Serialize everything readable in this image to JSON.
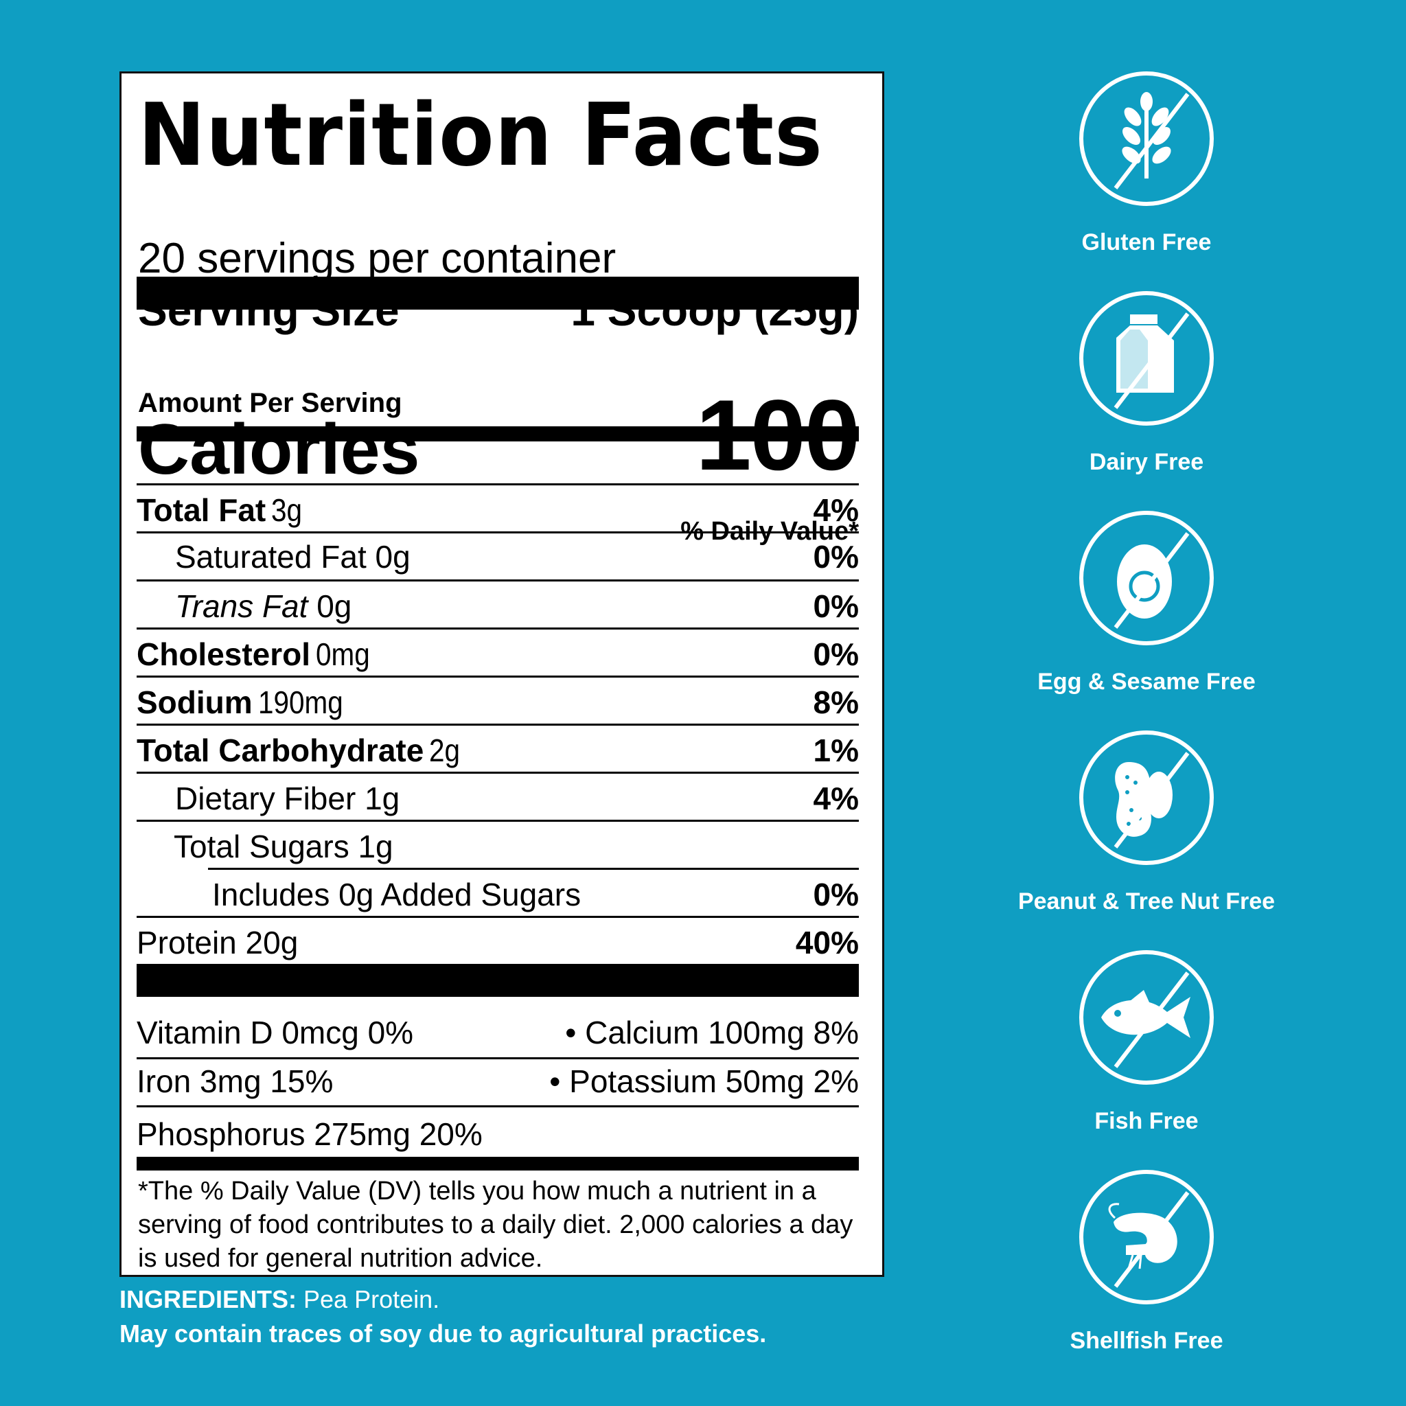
{
  "title": "Nutrition Facts",
  "servings_per_container": "20 servings per container",
  "serving_size_label": "Serving Size",
  "serving_size_value": "1 Scoop (25g)",
  "amount_per_serving": "Amount Per Serving",
  "calories_label": "Calories",
  "calories_value": "100",
  "daily_value_header": "% Daily Value*",
  "nutrients": [
    {
      "name": "Total Fat",
      "amount": "3g",
      "dv": "4%"
    },
    {
      "name": "Saturated Fat 0g",
      "amount": "",
      "dv": "0%"
    },
    {
      "name": "Trans Fat",
      "amount": "0g",
      "dv": "0%"
    },
    {
      "name": "Cholesterol",
      "amount": "0mg",
      "dv": "0%"
    },
    {
      "name": "Sodium",
      "amount": "190mg",
      "dv": "8%"
    },
    {
      "name": "Total Carbohydrate",
      "amount": "2g",
      "dv": "1%"
    },
    {
      "name": "Dietary Fiber 1g",
      "amount": "",
      "dv": "4%"
    },
    {
      "name": "Total Sugars 1g",
      "amount": "",
      "dv": ""
    },
    {
      "name": "Includes 0g Added Sugars",
      "amount": "",
      "dv": "0%"
    },
    {
      "name": "Protein 20g",
      "amount": "",
      "dv": "40%"
    }
  ],
  "vitamins": [
    {
      "left": "Vitamin D 0mcg 0%",
      "right": "• Calcium 100mg 8%"
    },
    {
      "left": "Iron 3mg 15%",
      "right": "• Potassium 50mg 2%"
    },
    {
      "left": "Phosphorus 275mg 20%",
      "right": ""
    }
  ],
  "footnote": "*The % Daily Value (DV) tells you how much a nutrient in a serving of food contributes to a daily diet. 2,000 calories a day is used for general nutrition advice.",
  "ingredients_label": "INGREDIENTS:",
  "ingredients_value": " Pea Protein.",
  "allergen_note": "May contain traces of soy due to agricultural practices.",
  "badges": [
    {
      "label": "Gluten Free",
      "icon": "wheat-icon"
    },
    {
      "label": "Dairy Free",
      "icon": "milk-carton-icon"
    },
    {
      "label": "Egg & Sesame Free",
      "icon": "egg-icon"
    },
    {
      "label": "Peanut & Tree Nut Free",
      "icon": "peanut-icon"
    },
    {
      "label": "Fish Free",
      "icon": "fish-icon"
    },
    {
      "label": "Shellfish Free",
      "icon": "shrimp-icon"
    }
  ],
  "colors": {
    "background": "#0f9ec2",
    "label_bg": "#ffffff",
    "text": "#000000",
    "badge": "#ffffff"
  }
}
